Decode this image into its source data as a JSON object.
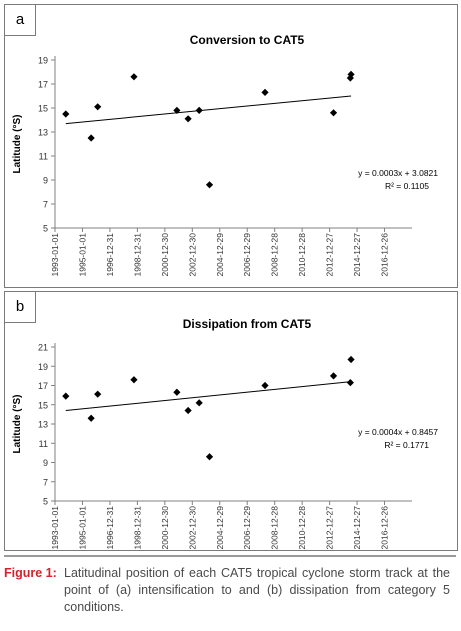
{
  "chart_data": [
    {
      "panel_label": "a",
      "type": "scatter",
      "title": "Conversion to CAT5",
      "ylabel": "Latitude (°S)",
      "xlabel": "",
      "x_ticks": [
        "1993-01-01",
        "1995-01-01",
        "1996-12-31",
        "1998-12-31",
        "2000-12-30",
        "2002-12-30",
        "2004-12-29",
        "2006-12-29",
        "2008-12-28",
        "2010-12-28",
        "2012-12-27",
        "2014-12-27",
        "2016-12-26"
      ],
      "x_range": [
        "1993-01-01",
        "2018-12-26"
      ],
      "y_ticks": [
        5,
        7,
        9,
        11,
        13,
        15,
        17,
        19
      ],
      "ylim": [
        5,
        19
      ],
      "grid": false,
      "points": [
        {
          "x": "1993-10-15",
          "y": 14.5
        },
        {
          "x": "1995-08-20",
          "y": 12.5
        },
        {
          "x": "1996-02-10",
          "y": 15.1
        },
        {
          "x": "1998-10-01",
          "y": 17.6
        },
        {
          "x": "2001-11-15",
          "y": 14.8
        },
        {
          "x": "2002-09-10",
          "y": 14.1
        },
        {
          "x": "2003-07-01",
          "y": 14.8
        },
        {
          "x": "2004-04-01",
          "y": 8.6
        },
        {
          "x": "2008-04-15",
          "y": 16.3
        },
        {
          "x": "2013-04-10",
          "y": 14.6
        },
        {
          "x": "2014-07-01",
          "y": 17.5
        },
        {
          "x": "2014-07-20",
          "y": 17.8
        }
      ],
      "trendline": {
        "x": [
          "1993-10-15",
          "2014-07-20"
        ],
        "y": [
          13.7,
          16.0
        ]
      },
      "equation": "y = 0.0003x + 3.0821",
      "r2": "R² = 0.1105"
    },
    {
      "panel_label": "b",
      "type": "scatter",
      "title": "Dissipation from CAT5",
      "ylabel": "Latitude (°S)",
      "xlabel": "",
      "x_ticks": [
        "1993-01-01",
        "1995-01-01",
        "1996-12-31",
        "1998-12-31",
        "2000-12-30",
        "2002-12-30",
        "2004-12-29",
        "2006-12-29",
        "2008-12-28",
        "2010-12-28",
        "2012-12-27",
        "2014-12-27",
        "2016-12-26"
      ],
      "x_range": [
        "1993-01-01",
        "2018-12-26"
      ],
      "y_ticks": [
        5,
        7,
        9,
        11,
        13,
        15,
        17,
        19,
        21
      ],
      "ylim": [
        5,
        21
      ],
      "grid": false,
      "points": [
        {
          "x": "1993-10-15",
          "y": 15.9
        },
        {
          "x": "1995-08-20",
          "y": 13.6
        },
        {
          "x": "1996-02-10",
          "y": 16.1
        },
        {
          "x": "1998-10-01",
          "y": 17.6
        },
        {
          "x": "2001-11-15",
          "y": 16.3
        },
        {
          "x": "2002-09-10",
          "y": 14.4
        },
        {
          "x": "2003-07-01",
          "y": 15.2
        },
        {
          "x": "2004-04-01",
          "y": 9.6
        },
        {
          "x": "2008-04-15",
          "y": 17.0
        },
        {
          "x": "2013-04-10",
          "y": 18.0
        },
        {
          "x": "2014-07-01",
          "y": 17.3
        },
        {
          "x": "2014-07-20",
          "y": 19.7
        }
      ],
      "trendline": {
        "x": [
          "1993-10-15",
          "2014-07-20"
        ],
        "y": [
          14.4,
          17.4
        ]
      },
      "equation": "y = 0.0004x + 0.8457",
      "r2": "R² = 0.1771"
    }
  ],
  "caption": {
    "label": "Figure 1:",
    "text": "Latitudinal position of each CAT5 tropical cyclone storm track at the point of (a) intensification to and (b) dissipation from category 5 conditions."
  },
  "colors": {
    "marker": "#000000",
    "axis": "#808080",
    "caption_label": "#d2232a",
    "caption_text": "#4a4a4a"
  }
}
